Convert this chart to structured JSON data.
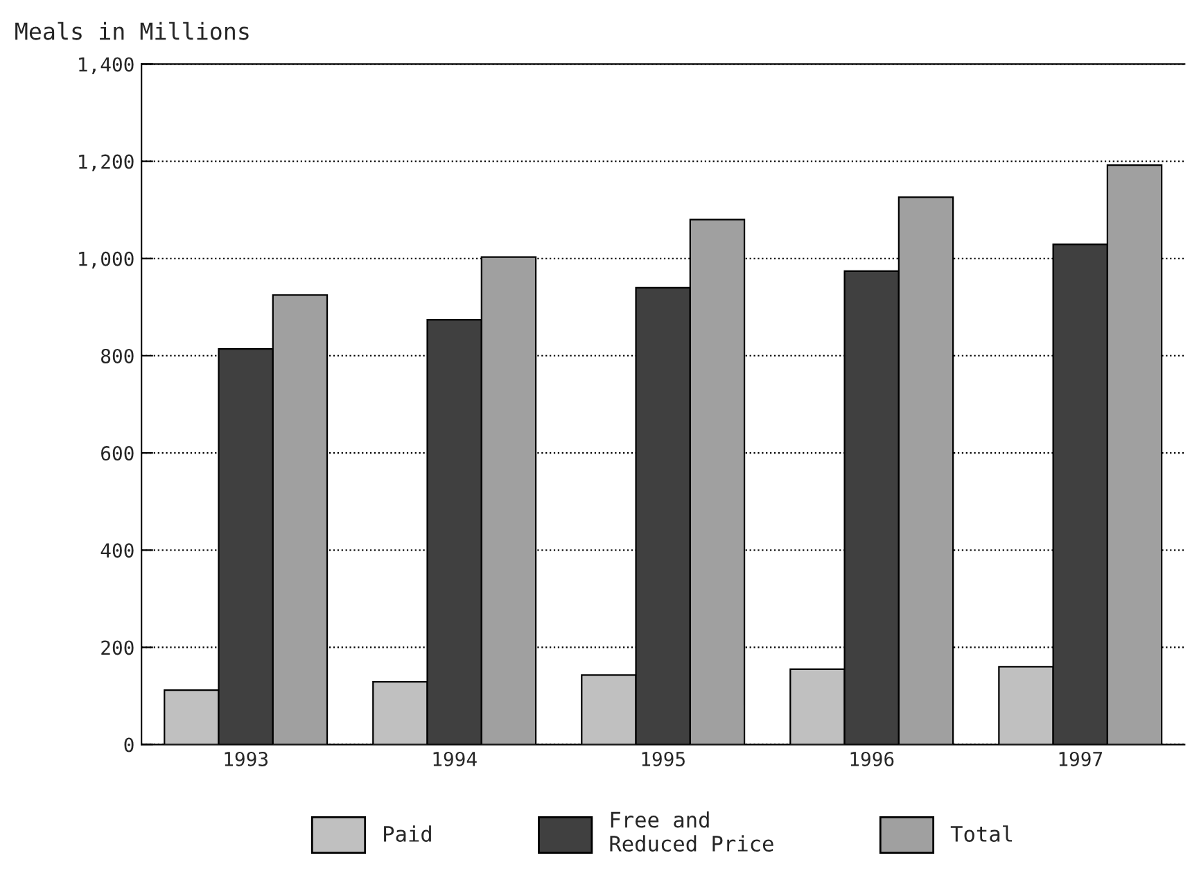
{
  "chart_data": {
    "type": "bar",
    "ylabel": "Meals in Millions",
    "categories": [
      "1993",
      "1994",
      "1995",
      "1996",
      "1997"
    ],
    "series": [
      {
        "name": "Paid",
        "color": "#c0c0c0",
        "values": [
          112,
          129,
          143,
          155,
          160
        ]
      },
      {
        "name": "Free and\nReduced Price",
        "color": "#404040",
        "values": [
          814,
          874,
          940,
          974,
          1029
        ]
      },
      {
        "name": "Total",
        "color": "#a0a0a0",
        "values": [
          925,
          1003,
          1080,
          1126,
          1192
        ]
      }
    ],
    "ylim": [
      0,
      1400
    ],
    "yticks": [
      0,
      {
        "value": 200,
        "label": "200"
      },
      {
        "value": 400,
        "label": "400"
      },
      {
        "value": 600,
        "label": "600"
      },
      {
        "value": 800,
        "label": "800"
      },
      {
        "value": 1000,
        "label": "1,000"
      },
      {
        "value": 1200,
        "label": "1,200"
      },
      {
        "value": 1400,
        "label": "1,400"
      }
    ],
    "grid": "y",
    "legend": "bottom"
  }
}
